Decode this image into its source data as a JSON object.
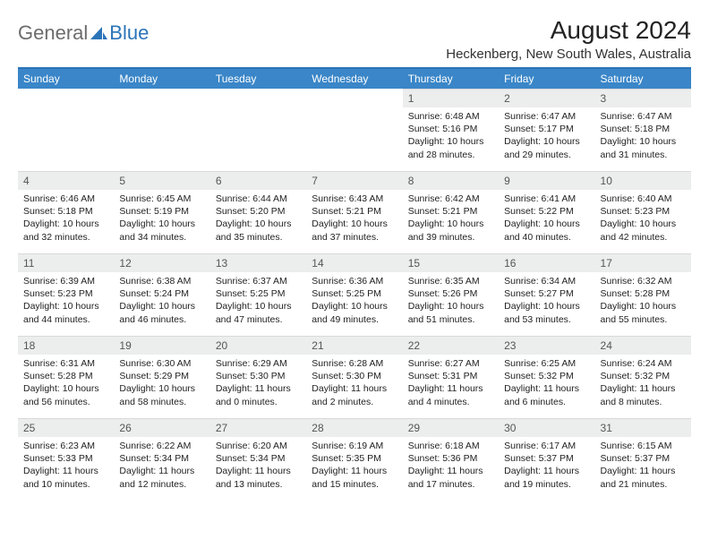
{
  "logo": {
    "part1": "General",
    "part2": "Blue"
  },
  "title": "August 2024",
  "location": "Heckenberg, New South Wales, Australia",
  "colors": {
    "header_bg": "#3a86c8",
    "header_border": "#2b74b8",
    "daynum_bg": "#eceded",
    "logo_gray": "#6c6c6c",
    "logo_blue": "#2b74b8"
  },
  "weekdays": [
    "Sunday",
    "Monday",
    "Tuesday",
    "Wednesday",
    "Thursday",
    "Friday",
    "Saturday"
  ],
  "startOffset": 4,
  "days": [
    {
      "n": 1,
      "sr": "6:48 AM",
      "ss": "5:16 PM",
      "dl": "10 hours and 28 minutes."
    },
    {
      "n": 2,
      "sr": "6:47 AM",
      "ss": "5:17 PM",
      "dl": "10 hours and 29 minutes."
    },
    {
      "n": 3,
      "sr": "6:47 AM",
      "ss": "5:18 PM",
      "dl": "10 hours and 31 minutes."
    },
    {
      "n": 4,
      "sr": "6:46 AM",
      "ss": "5:18 PM",
      "dl": "10 hours and 32 minutes."
    },
    {
      "n": 5,
      "sr": "6:45 AM",
      "ss": "5:19 PM",
      "dl": "10 hours and 34 minutes."
    },
    {
      "n": 6,
      "sr": "6:44 AM",
      "ss": "5:20 PM",
      "dl": "10 hours and 35 minutes."
    },
    {
      "n": 7,
      "sr": "6:43 AM",
      "ss": "5:21 PM",
      "dl": "10 hours and 37 minutes."
    },
    {
      "n": 8,
      "sr": "6:42 AM",
      "ss": "5:21 PM",
      "dl": "10 hours and 39 minutes."
    },
    {
      "n": 9,
      "sr": "6:41 AM",
      "ss": "5:22 PM",
      "dl": "10 hours and 40 minutes."
    },
    {
      "n": 10,
      "sr": "6:40 AM",
      "ss": "5:23 PM",
      "dl": "10 hours and 42 minutes."
    },
    {
      "n": 11,
      "sr": "6:39 AM",
      "ss": "5:23 PM",
      "dl": "10 hours and 44 minutes."
    },
    {
      "n": 12,
      "sr": "6:38 AM",
      "ss": "5:24 PM",
      "dl": "10 hours and 46 minutes."
    },
    {
      "n": 13,
      "sr": "6:37 AM",
      "ss": "5:25 PM",
      "dl": "10 hours and 47 minutes."
    },
    {
      "n": 14,
      "sr": "6:36 AM",
      "ss": "5:25 PM",
      "dl": "10 hours and 49 minutes."
    },
    {
      "n": 15,
      "sr": "6:35 AM",
      "ss": "5:26 PM",
      "dl": "10 hours and 51 minutes."
    },
    {
      "n": 16,
      "sr": "6:34 AM",
      "ss": "5:27 PM",
      "dl": "10 hours and 53 minutes."
    },
    {
      "n": 17,
      "sr": "6:32 AM",
      "ss": "5:28 PM",
      "dl": "10 hours and 55 minutes."
    },
    {
      "n": 18,
      "sr": "6:31 AM",
      "ss": "5:28 PM",
      "dl": "10 hours and 56 minutes."
    },
    {
      "n": 19,
      "sr": "6:30 AM",
      "ss": "5:29 PM",
      "dl": "10 hours and 58 minutes."
    },
    {
      "n": 20,
      "sr": "6:29 AM",
      "ss": "5:30 PM",
      "dl": "11 hours and 0 minutes."
    },
    {
      "n": 21,
      "sr": "6:28 AM",
      "ss": "5:30 PM",
      "dl": "11 hours and 2 minutes."
    },
    {
      "n": 22,
      "sr": "6:27 AM",
      "ss": "5:31 PM",
      "dl": "11 hours and 4 minutes."
    },
    {
      "n": 23,
      "sr": "6:25 AM",
      "ss": "5:32 PM",
      "dl": "11 hours and 6 minutes."
    },
    {
      "n": 24,
      "sr": "6:24 AM",
      "ss": "5:32 PM",
      "dl": "11 hours and 8 minutes."
    },
    {
      "n": 25,
      "sr": "6:23 AM",
      "ss": "5:33 PM",
      "dl": "11 hours and 10 minutes."
    },
    {
      "n": 26,
      "sr": "6:22 AM",
      "ss": "5:34 PM",
      "dl": "11 hours and 12 minutes."
    },
    {
      "n": 27,
      "sr": "6:20 AM",
      "ss": "5:34 PM",
      "dl": "11 hours and 13 minutes."
    },
    {
      "n": 28,
      "sr": "6:19 AM",
      "ss": "5:35 PM",
      "dl": "11 hours and 15 minutes."
    },
    {
      "n": 29,
      "sr": "6:18 AM",
      "ss": "5:36 PM",
      "dl": "11 hours and 17 minutes."
    },
    {
      "n": 30,
      "sr": "6:17 AM",
      "ss": "5:37 PM",
      "dl": "11 hours and 19 minutes."
    },
    {
      "n": 31,
      "sr": "6:15 AM",
      "ss": "5:37 PM",
      "dl": "11 hours and 21 minutes."
    }
  ],
  "labels": {
    "sunrise": "Sunrise:",
    "sunset": "Sunset:",
    "daylight": "Daylight:"
  }
}
